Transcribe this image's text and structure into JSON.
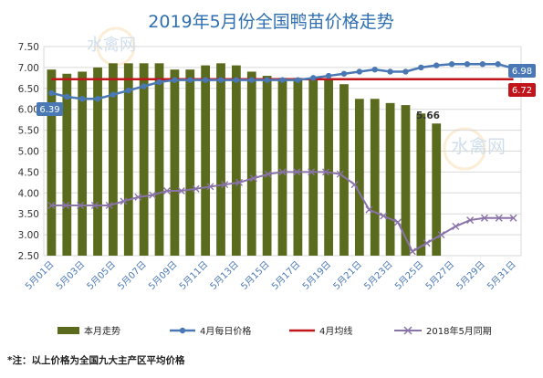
{
  "chart_data": {
    "type": "bar",
    "title": "2019年5月份全国鸭苗价格走势",
    "ylim": [
      2.5,
      7.5
    ],
    "y_ticks": [
      "2.50",
      "3.00",
      "3.50",
      "4.00",
      "4.50",
      "5.00",
      "5.50",
      "6.00",
      "6.50",
      "7.00",
      "7.50"
    ],
    "x_labels": [
      "5月01日",
      "5月03日",
      "5月05日",
      "5月07日",
      "5月09日",
      "5月11日",
      "5月13日",
      "5月15日",
      "5月17日",
      "5月19日",
      "5月21日",
      "5月23日",
      "5月25日",
      "5月27日",
      "5月29日",
      "5月31日"
    ],
    "series": [
      {
        "name": "本月走势",
        "type": "bar",
        "color": "#5b6b1e",
        "values": [
          6.95,
          6.85,
          6.9,
          7.0,
          7.1,
          7.1,
          7.1,
          7.1,
          6.95,
          6.95,
          7.05,
          7.1,
          7.05,
          6.9,
          6.8,
          6.75,
          6.75,
          6.75,
          6.7,
          6.6,
          6.25,
          6.25,
          6.15,
          6.1,
          5.9,
          5.66
        ]
      },
      {
        "name": "4月每日价格",
        "type": "line",
        "color": "#4a78b5",
        "values": [
          6.39,
          6.3,
          6.25,
          6.25,
          6.35,
          6.45,
          6.55,
          6.65,
          6.7,
          6.7,
          6.7,
          6.7,
          6.7,
          6.7,
          6.7,
          6.7,
          6.7,
          6.75,
          6.8,
          6.85,
          6.9,
          6.95,
          6.9,
          6.9,
          7.0,
          7.05,
          7.08,
          7.08,
          7.08,
          7.08,
          6.98
        ]
      },
      {
        "name": "4月均线",
        "type": "line",
        "color": "#c0151b",
        "values": [
          6.72,
          6.72,
          6.72,
          6.72,
          6.72,
          6.72,
          6.72,
          6.72,
          6.72,
          6.72,
          6.72,
          6.72,
          6.72,
          6.72,
          6.72,
          6.72,
          6.72,
          6.72,
          6.72,
          6.72,
          6.72,
          6.72,
          6.72,
          6.72,
          6.72,
          6.72,
          6.72,
          6.72,
          6.72,
          6.72,
          6.72
        ]
      },
      {
        "name": "2018年5月同期",
        "type": "line",
        "color": "#8a73a8",
        "values": [
          3.7,
          3.7,
          3.7,
          3.7,
          3.7,
          3.8,
          3.9,
          3.95,
          4.05,
          4.05,
          4.1,
          4.15,
          4.2,
          4.25,
          4.35,
          4.45,
          4.5,
          4.5,
          4.5,
          4.5,
          4.45,
          4.2,
          3.6,
          3.45,
          3.3,
          2.6,
          2.8,
          3.0,
          3.2,
          3.35,
          3.4,
          3.4,
          3.4
        ]
      }
    ],
    "labels": {
      "bar_end": "5.66",
      "blue_start": "6.39",
      "blue_end": "6.98",
      "avg": "6.72"
    },
    "note": "*注：以上价格为全国九大主产区平均价格",
    "watermark": "水禽网",
    "legend_position": "bottom",
    "grid": true
  }
}
